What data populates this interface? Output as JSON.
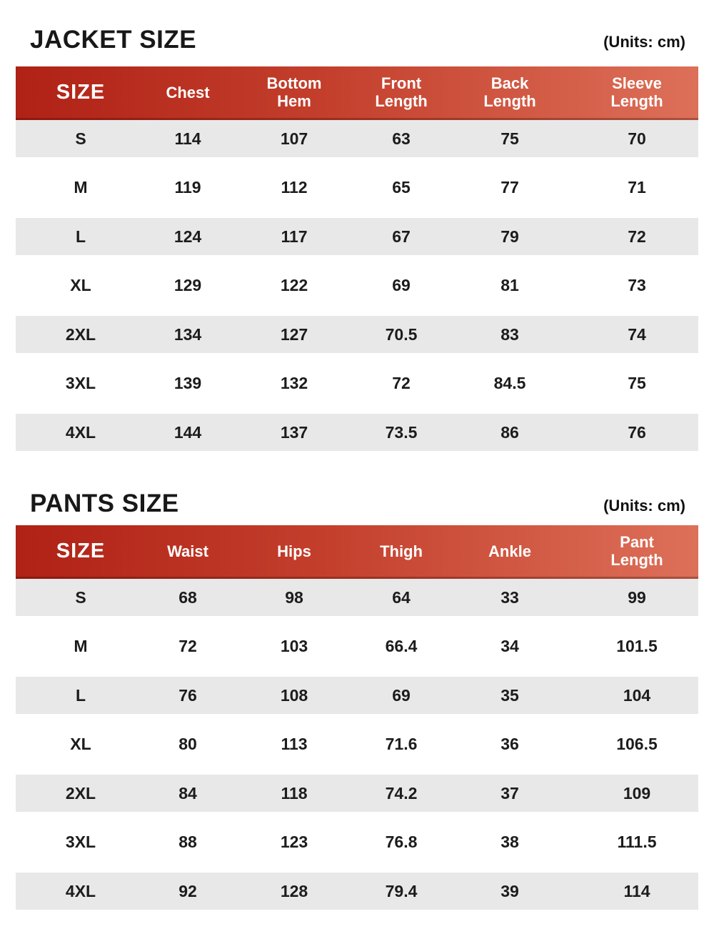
{
  "colors": {
    "header_gradient_left": "#b02116",
    "header_gradient_right": "#dd7059",
    "header_text": "#ffffff",
    "stripe_gray": "#e8e8e8",
    "row_white": "#ffffff",
    "body_text": "#1c1c1c",
    "title_text": "#181818"
  },
  "chart_data": [
    {
      "type": "table",
      "title": "JACKET SIZE",
      "units_label": "(Units: cm)",
      "columns": [
        "SIZE",
        "Chest",
        "Bottom\nHem",
        "Front\nLength",
        "Back\nLength",
        "Sleeve\nLength"
      ],
      "rows": [
        [
          "S",
          "114",
          "107",
          "63",
          "75",
          "70"
        ],
        [
          "M",
          "119",
          "112",
          "65",
          "77",
          "71"
        ],
        [
          "L",
          "124",
          "117",
          "67",
          "79",
          "72"
        ],
        [
          "XL",
          "129",
          "122",
          "69",
          "81",
          "73"
        ],
        [
          "2XL",
          "134",
          "127",
          "70.5",
          "83",
          "74"
        ],
        [
          "3XL",
          "139",
          "132",
          "72",
          "84.5",
          "75"
        ],
        [
          "4XL",
          "144",
          "137",
          "73.5",
          "86",
          "76"
        ]
      ]
    },
    {
      "type": "table",
      "title": "PANTS SIZE",
      "units_label": "(Units: cm)",
      "columns": [
        "SIZE",
        "Waist",
        "Hips",
        "Thigh",
        "Ankle",
        "Pant\nLength"
      ],
      "rows": [
        [
          "S",
          "68",
          "98",
          "64",
          "33",
          "99"
        ],
        [
          "M",
          "72",
          "103",
          "66.4",
          "34",
          "101.5"
        ],
        [
          "L",
          "76",
          "108",
          "69",
          "35",
          "104"
        ],
        [
          "XL",
          "80",
          "113",
          "71.6",
          "36",
          "106.5"
        ],
        [
          "2XL",
          "84",
          "118",
          "74.2",
          "37",
          "109"
        ],
        [
          "3XL",
          "88",
          "123",
          "76.8",
          "38",
          "111.5"
        ],
        [
          "4XL",
          "92",
          "128",
          "79.4",
          "39",
          "114"
        ]
      ]
    }
  ]
}
